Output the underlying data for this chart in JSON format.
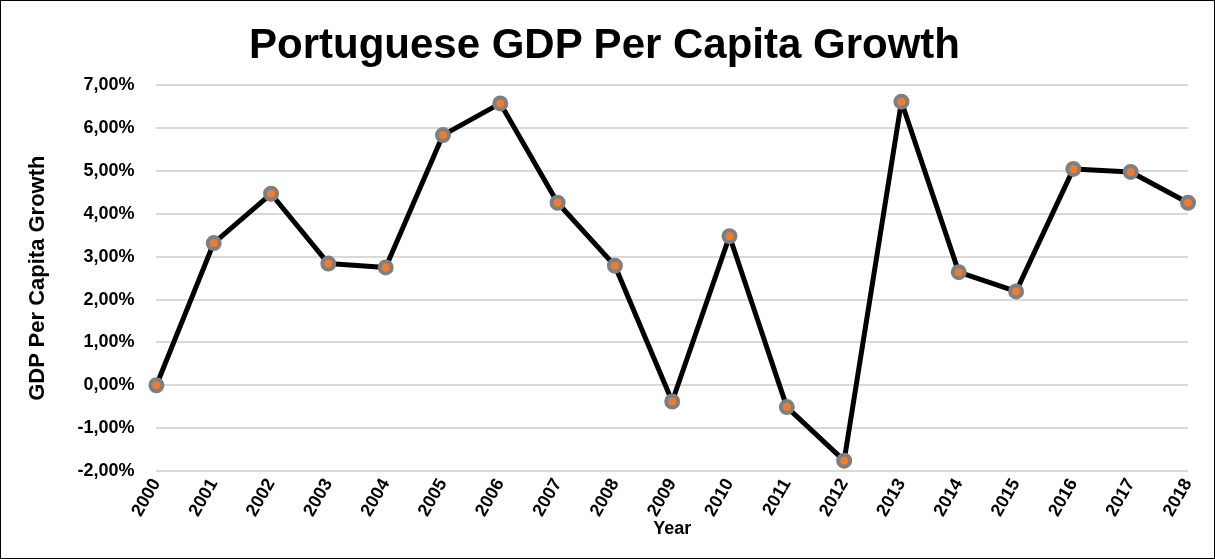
{
  "chart_data": {
    "type": "line",
    "title": "Portuguese GDP Per Capita Growth",
    "xlabel": "Year",
    "ylabel": "GDP Per Capita Growth",
    "categories": [
      "2000",
      "2001",
      "2002",
      "2003",
      "2004",
      "2005",
      "2006",
      "2007",
      "2008",
      "2009",
      "2010",
      "2011",
      "2012",
      "2013",
      "2014",
      "2015",
      "2016",
      "2017",
      "2018"
    ],
    "series": [
      {
        "color": "#000000",
        "values": [
          0.0,
          3.32,
          4.47,
          2.84,
          2.75,
          5.84,
          6.58,
          4.26,
          2.79,
          -0.38,
          3.48,
          -0.51,
          -1.76,
          6.62,
          2.64,
          2.19,
          5.05,
          4.98,
          4.26
        ]
      }
    ],
    "ylim": [
      -2,
      7
    ],
    "yticks": [
      {
        "value": -2,
        "label": "-2,00%"
      },
      {
        "value": -1,
        "label": "-1,00%"
      },
      {
        "value": 0,
        "label": "0,00%"
      },
      {
        "value": 1,
        "label": "1,00%"
      },
      {
        "value": 2,
        "label": "2,00%"
      },
      {
        "value": 3,
        "label": "3,00%"
      },
      {
        "value": 4,
        "label": "4,00%"
      },
      {
        "value": 5,
        "label": "5,00%"
      },
      {
        "value": 6,
        "label": "6,00%"
      },
      {
        "value": 7,
        "label": "7,00%"
      }
    ],
    "grid": "y",
    "legend": false,
    "marker": "circle",
    "line_style": "solid"
  }
}
